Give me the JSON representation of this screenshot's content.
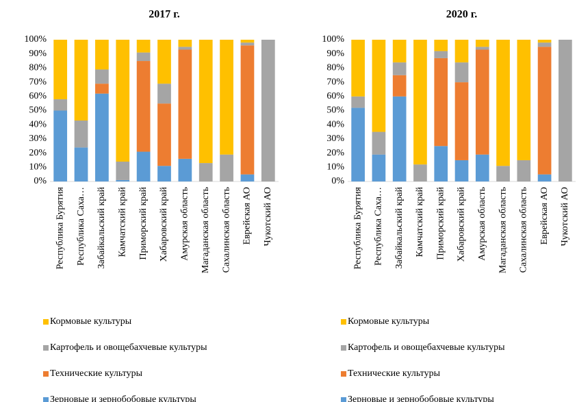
{
  "chart_data": [
    {
      "type": "bar",
      "stacked": true,
      "title": "2017 г.",
      "categories": [
        "Республика Бурятия",
        "Республика Саха…",
        "Забайкальский край",
        "Камчатский край",
        "Приморский край",
        "Хабаровский край",
        "Амурская область",
        "Магаданская область",
        "Сахалинская область",
        "Еврейская АО",
        "Чукотский АО"
      ],
      "series": [
        {
          "name": "Зерновые и зернобобовые культуры",
          "color": "#5b9bd5",
          "values": [
            50,
            24,
            62,
            1,
            21,
            11,
            16,
            0,
            0,
            5,
            0
          ]
        },
        {
          "name": "Технические культуры",
          "color": "#ed7d31",
          "values": [
            0,
            0,
            7,
            0,
            64,
            44,
            77,
            0,
            0,
            91,
            0
          ]
        },
        {
          "name": "Картофель и овощебахчевые культуры",
          "color": "#a5a5a5",
          "values": [
            8,
            19,
            10,
            13,
            6,
            14,
            2,
            13,
            19,
            2,
            100
          ]
        },
        {
          "name": "Кормовые культуры",
          "color": "#ffc000",
          "values": [
            42,
            57,
            21,
            86,
            9,
            31,
            5,
            87,
            81,
            2,
            0
          ]
        }
      ],
      "ylim": [
        0,
        100
      ],
      "yticks": [
        {
          "value": 0,
          "label": "0%"
        },
        {
          "value": 10,
          "label": "10%"
        },
        {
          "value": 20,
          "label": "20%"
        },
        {
          "value": 30,
          "label": "30%"
        },
        {
          "value": 40,
          "label": "40%"
        },
        {
          "value": 50,
          "label": "50%"
        },
        {
          "value": 60,
          "label": "60%"
        },
        {
          "value": 70,
          "label": "70%"
        },
        {
          "value": 80,
          "label": "80%"
        },
        {
          "value": 90,
          "label": "90%"
        },
        {
          "value": 100,
          "label": "100%"
        }
      ],
      "legend": "bottom"
    },
    {
      "type": "bar",
      "stacked": true,
      "title": "2020 г.",
      "categories": [
        "Республика Бурятия",
        "Республика Саха…",
        "Забайкальский край",
        "Камчатский край",
        "Приморский край",
        "Хабаровский край",
        "Амурская область",
        "Магаданская область",
        "Сахалинская область",
        "Еврейская АО",
        "Чукотский АО"
      ],
      "series": [
        {
          "name": "Зерновые и зернобобовые культуры",
          "color": "#5b9bd5",
          "values": [
            52,
            19,
            60,
            0,
            25,
            15,
            19,
            0,
            0,
            5,
            0
          ]
        },
        {
          "name": "Технические культуры",
          "color": "#ed7d31",
          "values": [
            0,
            0,
            15,
            0,
            62,
            55,
            74,
            0,
            0,
            90,
            0
          ]
        },
        {
          "name": "Картофель и овощебахчевые культуры",
          "color": "#a5a5a5",
          "values": [
            8,
            16,
            9,
            12,
            5,
            14,
            2,
            11,
            15,
            3,
            100
          ]
        },
        {
          "name": "Кормовые культуры",
          "color": "#ffc000",
          "values": [
            40,
            65,
            16,
            88,
            8,
            16,
            5,
            89,
            85,
            2,
            0
          ]
        }
      ],
      "ylim": [
        0,
        100
      ],
      "yticks": [
        {
          "value": 0,
          "label": "0%"
        },
        {
          "value": 10,
          "label": "10%"
        },
        {
          "value": 20,
          "label": "20%"
        },
        {
          "value": 30,
          "label": "30%"
        },
        {
          "value": 40,
          "label": "40%"
        },
        {
          "value": 50,
          "label": "50%"
        },
        {
          "value": 60,
          "label": "60%"
        },
        {
          "value": 70,
          "label": "70%"
        },
        {
          "value": 80,
          "label": "80%"
        },
        {
          "value": 90,
          "label": "90%"
        },
        {
          "value": 100,
          "label": "100%"
        }
      ],
      "legend": "bottom"
    }
  ]
}
